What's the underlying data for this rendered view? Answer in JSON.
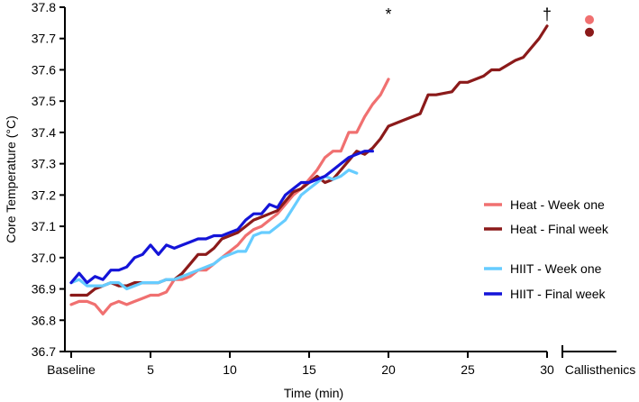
{
  "chart_data": {
    "type": "line",
    "title": "",
    "xlabel": "Time (min)",
    "ylabel": "Core Temperature (°C)",
    "xlim": [
      0,
      30
    ],
    "ylim": [
      36.7,
      37.8
    ],
    "grid": false,
    "yticks": [
      36.7,
      36.8,
      36.9,
      37.0,
      37.1,
      37.2,
      37.3,
      37.4,
      37.5,
      37.6,
      37.7,
      37.8
    ],
    "ytick_labels": [
      "36.7",
      "36.8",
      "36.9",
      "37.0",
      "37.1",
      "37.2",
      "37.3",
      "37.4",
      "37.5",
      "37.6",
      "37.7",
      "37.8"
    ],
    "xticks": [
      0,
      5,
      10,
      15,
      20,
      25,
      30
    ],
    "xtick_labels": [
      "Baseline",
      "5",
      "10",
      "15",
      "20",
      "25",
      "30"
    ],
    "extra_category_label": "Callisthenics",
    "legend_position": "right",
    "series": [
      {
        "name": "Heat - Week one",
        "color": "#F07070",
        "x": [
          0,
          0.5,
          1,
          1.5,
          2,
          2.5,
          3,
          3.5,
          4,
          4.5,
          5,
          5.5,
          6,
          6.5,
          7,
          7.5,
          8,
          8.5,
          9,
          9.5,
          10,
          10.5,
          11,
          11.5,
          12,
          12.5,
          13,
          13.5,
          14,
          14.5,
          15,
          15.5,
          16,
          16.5,
          17,
          17.5,
          18,
          18.5,
          19,
          19.5,
          20
        ],
        "values": [
          36.85,
          36.86,
          36.86,
          36.85,
          36.82,
          36.85,
          36.86,
          36.85,
          36.86,
          36.87,
          36.88,
          36.88,
          36.89,
          36.93,
          36.93,
          36.94,
          36.96,
          36.96,
          36.98,
          37.0,
          37.02,
          37.04,
          37.07,
          37.09,
          37.1,
          37.12,
          37.14,
          37.17,
          37.2,
          37.22,
          37.25,
          37.28,
          37.32,
          37.34,
          37.34,
          37.4,
          37.4,
          37.45,
          37.49,
          37.52,
          37.57
        ]
      },
      {
        "name": "Heat - Final week",
        "color": "#8B1A1A",
        "x": [
          0,
          0.5,
          1,
          1.5,
          2,
          2.5,
          3,
          3.5,
          4,
          4.5,
          5,
          5.5,
          6,
          6.5,
          7,
          7.5,
          8,
          8.5,
          9,
          9.5,
          10,
          10.5,
          11,
          11.5,
          12,
          12.5,
          13,
          13.5,
          14,
          14.5,
          15,
          15.5,
          16,
          16.5,
          17,
          17.5,
          18,
          18.5,
          19,
          19.5,
          20,
          21,
          22,
          22.5,
          23,
          24,
          24.5,
          25,
          26,
          26.5,
          27,
          28,
          28.5,
          29,
          29.5,
          30
        ],
        "values": [
          36.88,
          36.88,
          36.88,
          36.9,
          36.91,
          36.92,
          36.91,
          36.91,
          36.92,
          36.92,
          36.92,
          36.92,
          36.93,
          36.93,
          36.95,
          36.98,
          37.01,
          37.01,
          37.03,
          37.06,
          37.07,
          37.08,
          37.1,
          37.12,
          37.13,
          37.14,
          37.15,
          37.18,
          37.21,
          37.22,
          37.24,
          37.26,
          37.24,
          37.25,
          37.28,
          37.31,
          37.34,
          37.33,
          37.35,
          37.38,
          37.42,
          37.44,
          37.46,
          37.52,
          37.52,
          37.53,
          37.56,
          37.56,
          37.58,
          37.6,
          37.6,
          37.63,
          37.64,
          37.67,
          37.7,
          37.74
        ]
      },
      {
        "name": "HIIT - Week one",
        "color": "#66CCFF",
        "x": [
          0,
          0.5,
          1,
          1.5,
          2,
          2.5,
          3,
          3.5,
          4,
          4.5,
          5,
          5.5,
          6,
          6.5,
          7,
          7.5,
          8,
          8.5,
          9,
          9.5,
          10,
          10.5,
          11,
          11.5,
          12,
          12.5,
          13,
          13.5,
          14,
          14.5,
          15,
          15.5,
          16,
          16.5,
          17,
          17.5,
          18
        ],
        "values": [
          36.92,
          36.93,
          36.91,
          36.91,
          36.91,
          36.92,
          36.92,
          36.9,
          36.91,
          36.92,
          36.92,
          36.92,
          36.93,
          36.93,
          36.94,
          36.95,
          36.96,
          36.97,
          36.98,
          37.0,
          37.01,
          37.02,
          37.02,
          37.07,
          37.08,
          37.08,
          37.1,
          37.12,
          37.16,
          37.2,
          37.22,
          37.24,
          37.26,
          37.25,
          37.26,
          37.28,
          37.27
        ]
      },
      {
        "name": "HIIT - Final week",
        "color": "#1414D8",
        "x": [
          0,
          0.5,
          1,
          1.5,
          2,
          2.5,
          3,
          3.5,
          4,
          4.5,
          5,
          5.5,
          6,
          6.5,
          7,
          7.5,
          8,
          8.5,
          9,
          9.5,
          10,
          10.5,
          11,
          11.5,
          12,
          12.5,
          13,
          13.5,
          14,
          14.5,
          15,
          15.5,
          16,
          16.5,
          17,
          17.5,
          18,
          18.5,
          19
        ],
        "values": [
          36.92,
          36.95,
          36.92,
          36.94,
          36.93,
          36.96,
          36.96,
          36.97,
          37.0,
          37.01,
          37.04,
          37.01,
          37.04,
          37.03,
          37.04,
          37.05,
          37.06,
          37.06,
          37.07,
          37.07,
          37.08,
          37.09,
          37.12,
          37.14,
          37.14,
          37.17,
          37.16,
          37.2,
          37.22,
          37.24,
          37.24,
          37.25,
          37.26,
          37.28,
          37.3,
          37.32,
          37.33,
          37.34,
          37.34
        ]
      }
    ],
    "callisthenics_points": [
      {
        "name": "Heat - Week one",
        "value": 37.76,
        "color": "#F07070"
      },
      {
        "name": "Heat - Final week",
        "value": 37.72,
        "color": "#8B1A1A"
      }
    ],
    "annotations": [
      {
        "text": "*",
        "x": 20,
        "y": 37.8
      },
      {
        "text": "†",
        "x": 30,
        "y": 37.8
      }
    ]
  }
}
